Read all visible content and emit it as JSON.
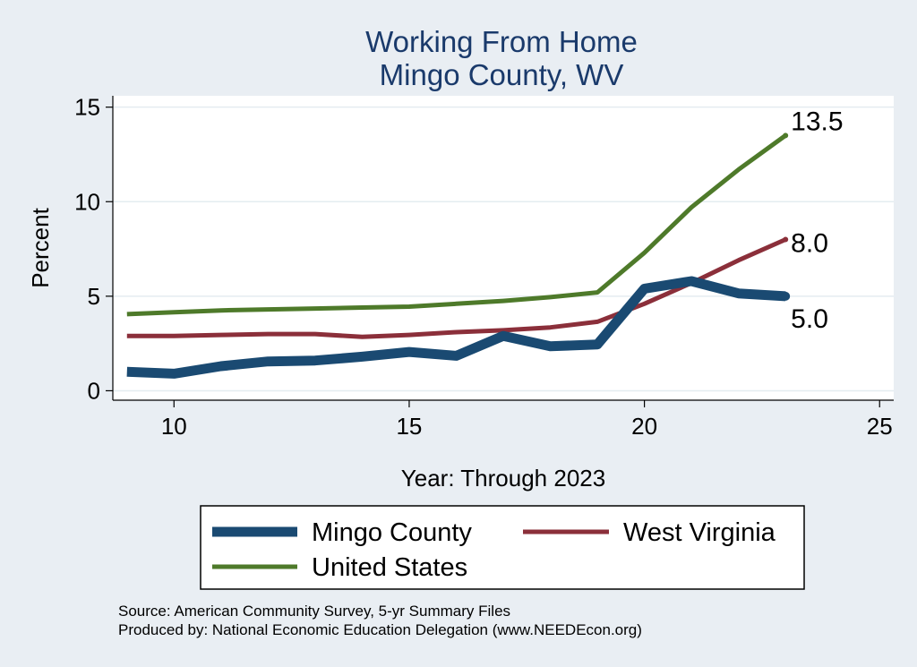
{
  "chart_data": {
    "type": "line",
    "title": "Working From Home",
    "subtitle": "Mingo County, WV",
    "xlabel": "Year: Through 2023",
    "ylabel": "Percent",
    "xlim": [
      8.7,
      25.3
    ],
    "ylim": [
      -0.5,
      15.6
    ],
    "xticks": [
      "10",
      "15",
      "20",
      "25"
    ],
    "yticks": [
      "0",
      "5",
      "10",
      "15"
    ],
    "grid": true,
    "legend_position": "bottom",
    "x": [
      9,
      10,
      11,
      12,
      13,
      14,
      15,
      16,
      17,
      18,
      19,
      20,
      21,
      22,
      23
    ],
    "series": [
      {
        "name": "Mingo County",
        "color": "#1a4a72",
        "values": [
          1.0,
          0.9,
          1.3,
          1.55,
          1.6,
          1.8,
          2.05,
          1.85,
          2.9,
          2.35,
          2.45,
          5.4,
          5.8,
          5.15,
          5.0
        ],
        "end_label": "5.0"
      },
      {
        "name": "West Virginia",
        "color": "#8b2f3a",
        "values": [
          2.9,
          2.9,
          2.95,
          3.0,
          3.0,
          2.85,
          2.95,
          3.1,
          3.2,
          3.35,
          3.65,
          4.6,
          5.7,
          6.9,
          8.0
        ],
        "end_label": "8.0"
      },
      {
        "name": "United States",
        "color": "#4e7a2a",
        "values": [
          4.05,
          4.15,
          4.25,
          4.3,
          4.35,
          4.4,
          4.45,
          4.6,
          4.75,
          4.95,
          5.2,
          7.3,
          9.7,
          11.7,
          13.5
        ],
        "end_label": "13.5"
      }
    ],
    "notes": [
      "Source: American Community Survey, 5-yr Summary Files",
      "Produced by: National Economic Education Delegation (www.NEEDEcon.org)"
    ]
  }
}
